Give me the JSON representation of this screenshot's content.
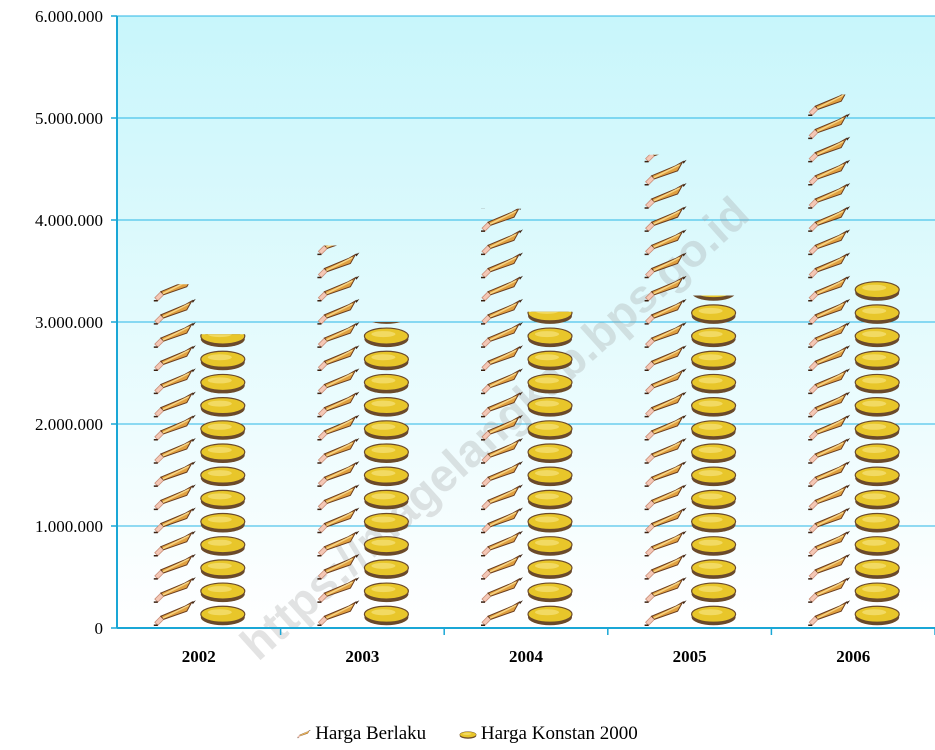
{
  "chart_data": {
    "type": "bar",
    "categories": [
      "2002",
      "2003",
      "2004",
      "2005",
      "2006"
    ],
    "series": [
      {
        "name": "Harga Berlaku",
        "values": [
          3370000,
          3750000,
          4110000,
          4640000,
          5230000
        ]
      },
      {
        "name": "Harga Konstan 2000",
        "values": [
          2880000,
          3000000,
          3100000,
          3260000,
          3410000
        ]
      }
    ],
    "ylim": [
      0,
      6000000
    ],
    "yticks": [
      "0",
      "1.000.000",
      "2.000.000",
      "3.000.000",
      "4.000.000",
      "5.000.000",
      "6.000.000"
    ],
    "grid": true,
    "legend_position": "bottom",
    "watermark": "https://magelangkab.bps.go.id",
    "colors": {
      "plot_top": "#c8f6fb",
      "plot_bottom": "#ffffff",
      "axis": "#1aa7d6",
      "gridline": "#29b6e6",
      "coin": "#e8c62a",
      "coin_edge": "#6b4a2a",
      "pencil": "#e0a040",
      "pencil_dark": "#6b3d1e",
      "eraser": "#f4c7b5"
    },
    "icons": {
      "series1": "pencil-icon",
      "series2": "coin-icon"
    }
  }
}
